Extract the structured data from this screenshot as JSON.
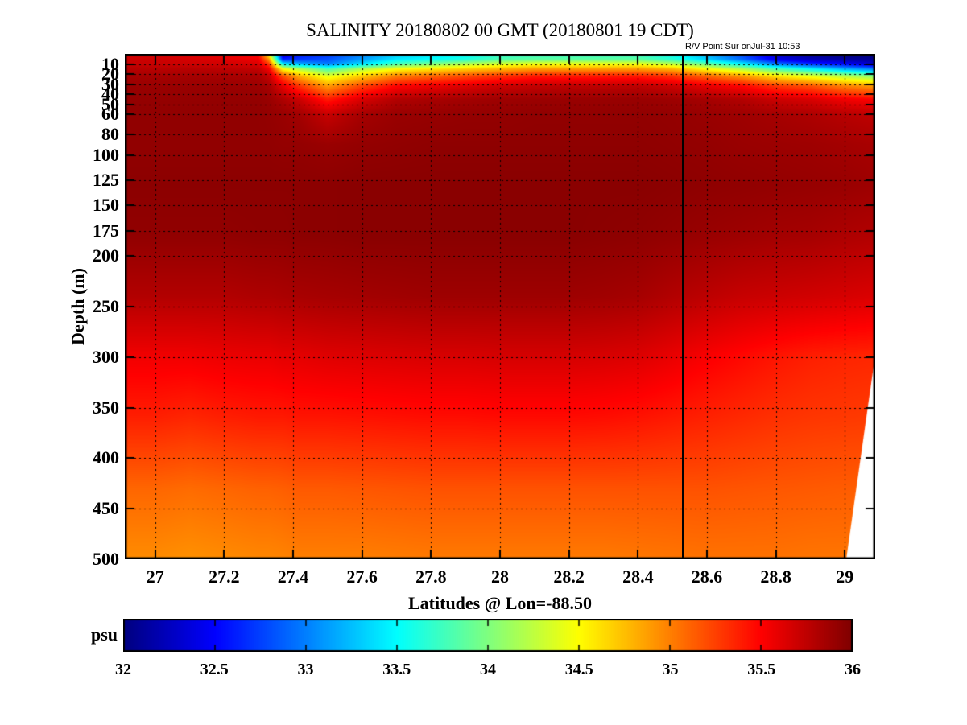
{
  "chart_data": {
    "type": "heatmap",
    "title": "SALINITY 20180802 00 GMT (20180801 19 CDT)",
    "xlabel": "Latitudes @ Lon=-88.50",
    "ylabel": "Depth (m)",
    "colorbar_label": "psu",
    "colormap": "jet",
    "color_range": [
      32,
      36
    ],
    "x_range": [
      26.912,
      29.088
    ],
    "y_range": [
      0,
      500
    ],
    "grid": "dotted",
    "legend_position": "bottom-colorbar",
    "x_ticks": [
      {
        "v": 27.0,
        "label": "27"
      },
      {
        "v": 27.2,
        "label": "27.2"
      },
      {
        "v": 27.4,
        "label": "27.4"
      },
      {
        "v": 27.6,
        "label": "27.6"
      },
      {
        "v": 27.8,
        "label": "27.8"
      },
      {
        "v": 28.0,
        "label": "28"
      },
      {
        "v": 28.2,
        "label": "28.2"
      },
      {
        "v": 28.4,
        "label": "28.4"
      },
      {
        "v": 28.6,
        "label": "28.6"
      },
      {
        "v": 28.8,
        "label": "28.8"
      },
      {
        "v": 29.0,
        "label": "29"
      }
    ],
    "y_ticks": [
      {
        "v": 10,
        "label": "10"
      },
      {
        "v": 20,
        "label": "20"
      },
      {
        "v": 30,
        "label": "30"
      },
      {
        "v": 40,
        "label": "40"
      },
      {
        "v": 50,
        "label": "50"
      },
      {
        "v": 60,
        "label": "60"
      },
      {
        "v": 80,
        "label": "80"
      },
      {
        "v": 100,
        "label": "100"
      },
      {
        "v": 125,
        "label": "125"
      },
      {
        "v": 150,
        "label": "150"
      },
      {
        "v": 175,
        "label": "175"
      },
      {
        "v": 200,
        "label": "200"
      },
      {
        "v": 250,
        "label": "250"
      },
      {
        "v": 300,
        "label": "300"
      },
      {
        "v": 350,
        "label": "350"
      },
      {
        "v": 400,
        "label": "400"
      },
      {
        "v": 450,
        "label": "450"
      },
      {
        "v": 500,
        "label": "500"
      }
    ],
    "colorbar_ticks": [
      {
        "v": 32,
        "label": "32"
      },
      {
        "v": 32.5,
        "label": "32.5"
      },
      {
        "v": 33,
        "label": "33"
      },
      {
        "v": 33.5,
        "label": "33.5"
      },
      {
        "v": 34,
        "label": "34"
      },
      {
        "v": 34.5,
        "label": "34.5"
      },
      {
        "v": 35,
        "label": "35"
      },
      {
        "v": 35.5,
        "label": "35.5"
      },
      {
        "v": 36,
        "label": "36"
      }
    ],
    "annotation": {
      "text": "R/V Point Sur onJul-31 10:53",
      "line_lat": 28.53
    },
    "no_data_polygon": [
      [
        29.088,
        298
      ],
      [
        29.088,
        500
      ],
      [
        29.004,
        500
      ]
    ],
    "lats": [
      26.92,
      27.0,
      27.1,
      27.2,
      27.3,
      27.33,
      27.37,
      27.42,
      27.5,
      27.6,
      27.7,
      27.8,
      27.9,
      28.0,
      28.1,
      28.2,
      28.3,
      28.4,
      28.5,
      28.6,
      28.7,
      28.8,
      28.9,
      29.0,
      29.09
    ],
    "depths": [
      0,
      5,
      10,
      15,
      22,
      32,
      45,
      60,
      90,
      130,
      180,
      240,
      300,
      360,
      430,
      500
    ],
    "salinity": [
      [
        35.65,
        35.65,
        35.6,
        35.55,
        35.45,
        34.4,
        32.3,
        32.6,
        32.7,
        33.0,
        33.3,
        33.4,
        33.5,
        33.7,
        33.75,
        33.75,
        33.75,
        33.75,
        33.55,
        33.2,
        32.8,
        32.3,
        32.1,
        32.0,
        32.0
      ],
      [
        35.7,
        35.7,
        35.66,
        35.62,
        35.55,
        34.9,
        32.6,
        32.7,
        32.8,
        33.1,
        33.4,
        33.5,
        33.6,
        33.8,
        33.85,
        33.85,
        33.85,
        33.85,
        33.65,
        33.3,
        32.9,
        32.4,
        32.2,
        32.1,
        32.05
      ],
      [
        35.72,
        35.72,
        35.7,
        35.68,
        35.64,
        35.3,
        33.5,
        33.2,
        33.0,
        33.4,
        33.8,
        34.0,
        34.2,
        34.35,
        34.45,
        34.45,
        34.45,
        34.45,
        34.25,
        33.9,
        33.5,
        33.0,
        32.7,
        32.5,
        32.3
      ],
      [
        35.78,
        35.78,
        35.78,
        35.76,
        35.74,
        35.55,
        34.5,
        34.2,
        33.8,
        34.2,
        34.5,
        34.6,
        34.7,
        34.8,
        34.9,
        34.9,
        34.9,
        34.9,
        34.8,
        34.5,
        34.2,
        33.8,
        33.5,
        33.2,
        33.0
      ],
      [
        35.85,
        35.85,
        35.85,
        35.84,
        35.83,
        35.72,
        35.2,
        34.8,
        34.4,
        34.7,
        35.0,
        35.1,
        35.2,
        35.3,
        35.4,
        35.4,
        35.4,
        35.4,
        35.3,
        35.1,
        34.9,
        34.6,
        34.4,
        34.2,
        34.0
      ],
      [
        35.9,
        35.9,
        35.9,
        35.9,
        35.89,
        35.85,
        35.6,
        35.3,
        34.9,
        35.25,
        35.5,
        35.58,
        35.64,
        35.7,
        35.74,
        35.76,
        35.76,
        35.76,
        35.7,
        35.6,
        35.5,
        35.3,
        35.2,
        35.0,
        34.9
      ],
      [
        35.92,
        35.92,
        35.92,
        35.92,
        35.92,
        35.9,
        35.82,
        35.7,
        35.4,
        35.65,
        35.8,
        35.84,
        35.86,
        35.88,
        35.89,
        35.9,
        35.9,
        35.9,
        35.88,
        35.85,
        35.8,
        35.7,
        35.65,
        35.55,
        35.5
      ],
      [
        35.93,
        35.93,
        35.93,
        35.93,
        35.93,
        35.92,
        35.9,
        35.86,
        35.72,
        35.85,
        35.9,
        35.91,
        35.92,
        35.92,
        35.93,
        35.93,
        35.93,
        35.93,
        35.92,
        35.9,
        35.88,
        35.85,
        35.82,
        35.78,
        35.75
      ],
      [
        35.93,
        35.93,
        35.93,
        35.93,
        35.93,
        35.93,
        35.92,
        35.92,
        35.9,
        35.92,
        35.93,
        35.94,
        35.94,
        35.94,
        35.94,
        35.94,
        35.94,
        35.94,
        35.93,
        35.92,
        35.9,
        35.89,
        35.88,
        35.86,
        35.84
      ],
      [
        35.95,
        35.95,
        35.95,
        35.95,
        35.95,
        35.95,
        35.95,
        35.95,
        35.95,
        35.96,
        35.96,
        35.96,
        35.96,
        35.96,
        35.96,
        35.96,
        35.96,
        35.96,
        35.95,
        35.94,
        35.93,
        35.92,
        35.91,
        35.9,
        35.88
      ],
      [
        35.93,
        35.93,
        35.93,
        35.93,
        35.94,
        35.94,
        35.94,
        35.95,
        35.95,
        35.96,
        35.96,
        35.96,
        35.96,
        35.96,
        35.96,
        35.96,
        35.95,
        35.94,
        35.92,
        35.9,
        35.88,
        35.86,
        35.85,
        35.82,
        35.8
      ],
      [
        35.8,
        35.8,
        35.8,
        35.8,
        35.82,
        35.82,
        35.83,
        35.84,
        35.85,
        35.86,
        35.87,
        35.88,
        35.88,
        35.88,
        35.88,
        35.88,
        35.87,
        35.85,
        35.8,
        35.76,
        35.72,
        35.7,
        35.68,
        35.66,
        35.64
      ],
      [
        35.55,
        35.55,
        35.55,
        35.57,
        35.58,
        35.58,
        35.6,
        35.6,
        35.62,
        35.63,
        35.64,
        35.65,
        35.65,
        35.66,
        35.66,
        35.66,
        35.65,
        35.63,
        35.58,
        35.52,
        35.47,
        35.42,
        35.38,
        35.36,
        35.35
      ],
      [
        35.38,
        35.38,
        35.35,
        35.38,
        35.4,
        35.4,
        35.4,
        35.42,
        35.42,
        35.43,
        35.44,
        35.45,
        35.45,
        35.46,
        35.46,
        35.46,
        35.45,
        35.43,
        35.4,
        35.37,
        35.34,
        35.31,
        35.29,
        35.28,
        35.27
      ],
      [
        35.1,
        35.1,
        35.08,
        35.1,
        35.12,
        35.12,
        35.13,
        35.15,
        35.15,
        35.16,
        35.17,
        35.18,
        35.18,
        35.18,
        35.18,
        35.18,
        35.18,
        35.18,
        35.18,
        35.18,
        35.17,
        35.16,
        35.15,
        35.14,
        35.13
      ],
      [
        34.95,
        34.95,
        34.93,
        34.95,
        34.97,
        34.97,
        34.98,
        35.0,
        35.0,
        35.0,
        35.01,
        35.02,
        35.02,
        35.02,
        35.02,
        35.02,
        35.02,
        35.03,
        35.04,
        35.05,
        35.05,
        35.05,
        35.04,
        35.04,
        35.03
      ]
    ]
  }
}
